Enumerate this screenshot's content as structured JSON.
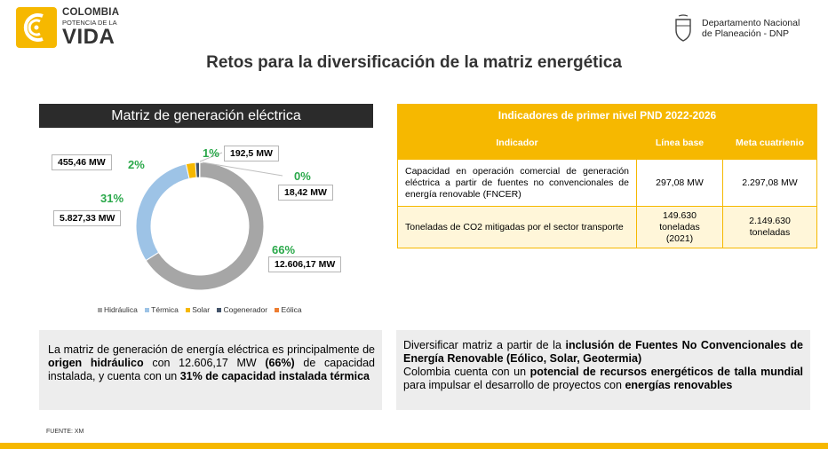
{
  "header": {
    "brand_line1": "COLOMBIA",
    "brand_line2": "POTENCIA DE LA",
    "brand_line3": "VIDA",
    "dnp_line1": "Departamento Nacional",
    "dnp_line2": "de Planeación - DNP"
  },
  "title": "Retos para la diversificación de la matriz energética",
  "matrix": {
    "header": "Matriz de generación eléctrica",
    "labels": {
      "hidraulica_pct": "66%",
      "hidraulica_mw": "12.606,17 MW",
      "termica_pct": "31%",
      "termica_mw": "5.827,33 MW",
      "solar_pct": "2%",
      "solar_mw": "455,46 MW",
      "cogenerador_pct": "1%",
      "cogenerador_mw": "192,5 MW",
      "eolica_pct": "0%",
      "eolica_mw": "18,42 MW"
    },
    "legend": [
      "Hidráulica",
      "Térmica",
      "Solar",
      "Cogenerador",
      "Eólica"
    ]
  },
  "chart_data": {
    "type": "pie",
    "categories": [
      "Hidráulica",
      "Térmica",
      "Solar",
      "Cogenerador",
      "Eólica"
    ],
    "values": [
      12606.17,
      5827.33,
      455.46,
      192.5,
      18.42
    ],
    "percent_labels": [
      "66%",
      "31%",
      "2%",
      "1%",
      "0%"
    ],
    "colors": [
      "#a6a6a6",
      "#9dc3e6",
      "#f6b800",
      "#44546a",
      "#ed7d31"
    ],
    "legend_placement": "bottom"
  },
  "indicators": {
    "title": "Indicadores de primer nivel PND 2022-2026",
    "columns": [
      "Indicador",
      "Línea base",
      "Meta cuatrienio"
    ],
    "rows": [
      {
        "indicator": "Capacidad en operación comercial de generación eléctrica a partir de fuentes no convencionales de energía renovable (FNCER)",
        "baseline": "297,08 MW",
        "target": "2.297,08 MW"
      },
      {
        "indicator": "Toneladas de CO2 mitigadas por el sector transporte",
        "baseline_line1": "149.630",
        "baseline_line2": "toneladas",
        "baseline_line3": "(2021)",
        "target_line1": "2.149.630",
        "target_line2": "toneladas"
      }
    ]
  },
  "summary_left": {
    "t1": "La matriz de generación de energía eléctrica es principalmente de ",
    "b1": "origen hidráulico",
    "t2": " con 12.606,17 MW ",
    "b2": "(66%)",
    "t3": " de capacidad instalada, y cuenta con un ",
    "b3": "31% de capacidad instalada térmica"
  },
  "summary_right": {
    "t1": "Diversificar matriz a partir de la ",
    "b1": "inclusión de Fuentes No Convencionales de Energía Renovable (Eólico, Solar, Geotermia)",
    "t2": "Colombia cuenta con un ",
    "b2": "potencial de recursos energéticos de talla mundial",
    "t3": " para impulsar el desarrollo de proyectos con ",
    "b3": "energías renovables"
  },
  "source": "FUENTE: XM"
}
